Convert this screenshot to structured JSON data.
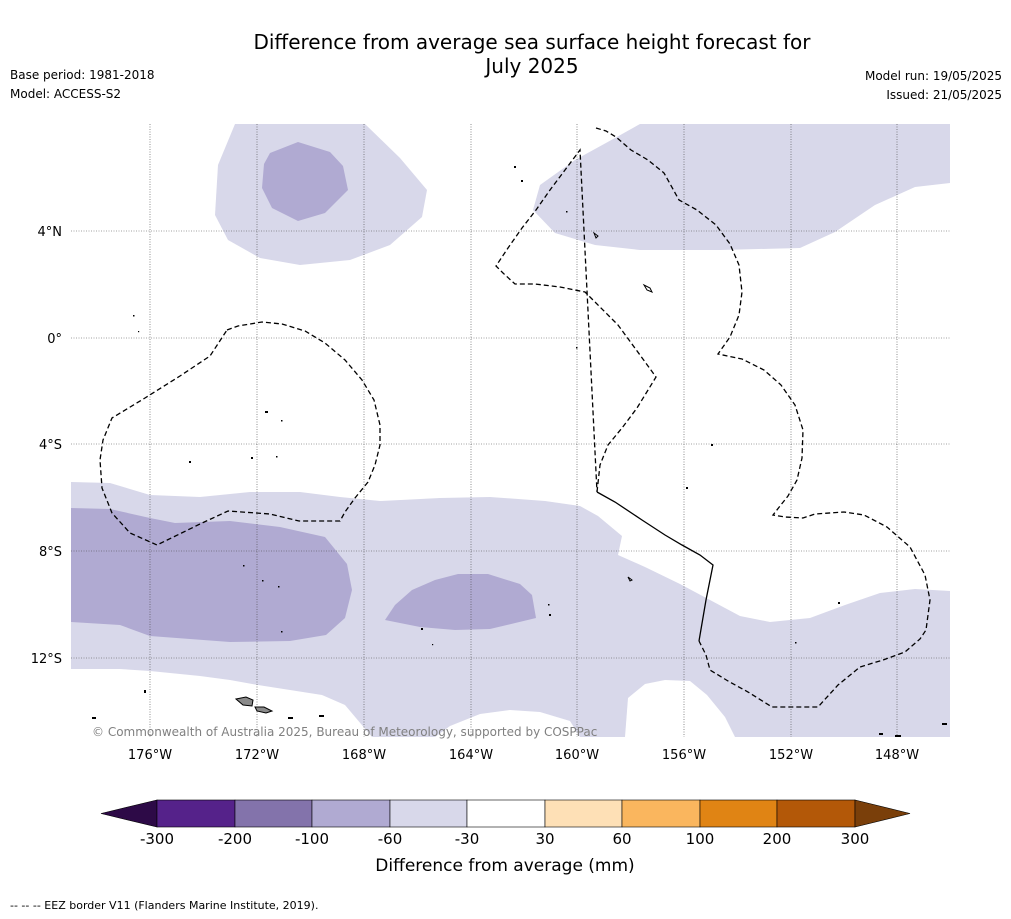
{
  "title_line1": "Difference from average sea surface height forecast for",
  "title_line2": "July 2025",
  "base_period": "Base period: 1981-2018",
  "model": "Model: ACCESS-S2",
  "model_run": "Model run: 19/05/2025",
  "issued": "Issued: 21/05/2025",
  "copyright": "© Commonwealth of Australia 2025, Bureau of Meteorology, supported by COSPPac",
  "footer": "--  --  -- EEZ border V11 (Flanders Marine Institute, 2019).",
  "map": {
    "lat_labels": [
      "4°N",
      "0°",
      "4°S",
      "8°S",
      "12°S"
    ],
    "lon_labels": [
      "176°W",
      "172°W",
      "168°W",
      "164°W",
      "160°W",
      "156°W",
      "152°W",
      "148°W"
    ],
    "colors": {
      "light_purple": "#d8d8ea",
      "mid_purple": "#b0aad2",
      "coastline": "#000000",
      "land": "#8a8a8a"
    }
  },
  "colorbar": {
    "title": "Difference from average (mm)",
    "tick_labels": [
      "-300",
      "-200",
      "-100",
      "-60",
      "-30",
      "30",
      "60",
      "100",
      "200",
      "300"
    ],
    "low_extend_color": "#2d0a47",
    "high_extend_color": "#7a3f0a",
    "bins": [
      {
        "from": "-300",
        "to": "-200",
        "color": "#55228a"
      },
      {
        "from": "-200",
        "to": "-100",
        "color": "#8373ab"
      },
      {
        "from": "-100",
        "to": "-60",
        "color": "#b0aad2"
      },
      {
        "from": "-60",
        "to": "-30",
        "color": "#d8d8ea"
      },
      {
        "from": "-30",
        "to": "30",
        "color": "#ffffff"
      },
      {
        "from": "30",
        "to": "60",
        "color": "#fee0b6"
      },
      {
        "from": "60",
        "to": "100",
        "color": "#fab65e"
      },
      {
        "from": "100",
        "to": "200",
        "color": "#e08414"
      },
      {
        "from": "200",
        "to": "300",
        "color": "#b35808"
      }
    ]
  }
}
